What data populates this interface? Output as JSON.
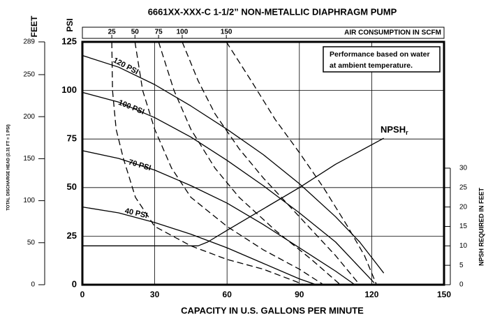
{
  "chart_data": {
    "type": "line",
    "title": "6661XX-XXX-C   1-1/2” NON-METALLIC DIAPHRAGM PUMP",
    "x_label": "CAPACITY IN U.S. GALLONS PER MINUTE",
    "y_label": "PSI",
    "feet_label": "FEET",
    "head_label": "TOTAL DISCHARGE HEAD (2.31 FT = 1 PSI)",
    "y3_label": "NPSH REQUIRED IN FEET",
    "air_label": "AIR CONSUMPTION IN SCFM",
    "note": [
      "Performance based on water",
      "at ambient temperature."
    ],
    "npsh_label": "NPSH",
    "npsh_sub": "r",
    "xlim": [
      0,
      150
    ],
    "xticks": [
      0,
      30,
      60,
      90,
      120,
      150
    ],
    "ylim": [
      0,
      125
    ],
    "yticks": [
      0,
      25,
      50,
      75,
      100,
      125
    ],
    "feet_lim": [
      0,
      289
    ],
    "feet_ticks": [
      0,
      50,
      100,
      150,
      200,
      250,
      289
    ],
    "y3lim": [
      0,
      62.5
    ],
    "y3ticks": [
      0,
      5,
      10,
      15,
      20,
      25,
      30
    ],
    "air_ticks": [
      {
        "value": 12.2,
        "label": "25"
      },
      {
        "value": 21.8,
        "label": "50"
      },
      {
        "value": 31.6,
        "label": "75"
      },
      {
        "value": 41.4,
        "label": "100"
      },
      {
        "value": 59.7,
        "label": "150"
      }
    ],
    "grid": true,
    "series": [
      {
        "name": "120 PSI",
        "color": "#000000",
        "style": "solid",
        "x": [
          0,
          15,
          30,
          45,
          60,
          75,
          90,
          105,
          115,
          125
        ],
        "values": [
          118,
          112,
          103,
          92,
          80,
          67,
          52,
          35,
          22,
          6
        ]
      },
      {
        "name": "100 PSI",
        "color": "#000000",
        "style": "solid",
        "x": [
          0,
          15,
          30,
          45,
          60,
          75,
          90,
          105,
          121
        ],
        "values": [
          99,
          94,
          86,
          76,
          64,
          51,
          37,
          22,
          1
        ]
      },
      {
        "name": "70 PSI",
        "color": "#000000",
        "style": "solid",
        "x": [
          0,
          15,
          30,
          45,
          60,
          75,
          90,
          105,
          113
        ],
        "values": [
          69,
          65,
          59,
          51,
          42,
          31,
          19,
          7,
          0
        ]
      },
      {
        "name": "40 PSI",
        "color": "#000000",
        "style": "solid",
        "x": [
          0,
          15,
          30,
          45,
          60,
          75,
          90,
          97
        ],
        "values": [
          40,
          37,
          32,
          26,
          19,
          11,
          3,
          0
        ]
      },
      {
        "color": "#000000",
        "style": "dashed",
        "x": [
          12.2,
          12.5,
          14,
          17,
          22,
          30,
          45,
          60,
          75,
          92
        ],
        "values": [
          125,
          100,
          80,
          65,
          45,
          30,
          20,
          13,
          8,
          0
        ]
      },
      {
        "color": "#000000",
        "style": "dashed",
        "x": [
          21.8,
          25,
          30,
          37,
          45,
          60,
          75,
          90,
          100
        ],
        "values": [
          125,
          100,
          80,
          60,
          45,
          30,
          18,
          8,
          0
        ]
      },
      {
        "color": "#000000",
        "style": "dashed",
        "x": [
          31.6,
          38,
          45,
          55,
          65,
          80,
          95,
          107
        ],
        "values": [
          125,
          100,
          80,
          60,
          45,
          28,
          13,
          0
        ]
      },
      {
        "color": "#000000",
        "style": "dashed",
        "x": [
          41.4,
          48,
          55,
          65,
          75,
          90,
          105,
          115
        ],
        "values": [
          125,
          105,
          88,
          70,
          55,
          35,
          15,
          0
        ]
      },
      {
        "color": "#000000",
        "style": "dashed",
        "x": [
          59.7,
          70,
          80,
          90,
          100,
          110,
          117,
          122
        ],
        "values": [
          125,
          105,
          85,
          68,
          50,
          30,
          15,
          0
        ]
      },
      {
        "color": "#000000",
        "style": "solid",
        "axis": "y3",
        "x": [
          0,
          48,
          52,
          60,
          75,
          90,
          105,
          125
        ],
        "values": [
          10,
          10,
          11,
          14,
          19.5,
          25,
          31,
          37.7
        ]
      }
    ]
  }
}
